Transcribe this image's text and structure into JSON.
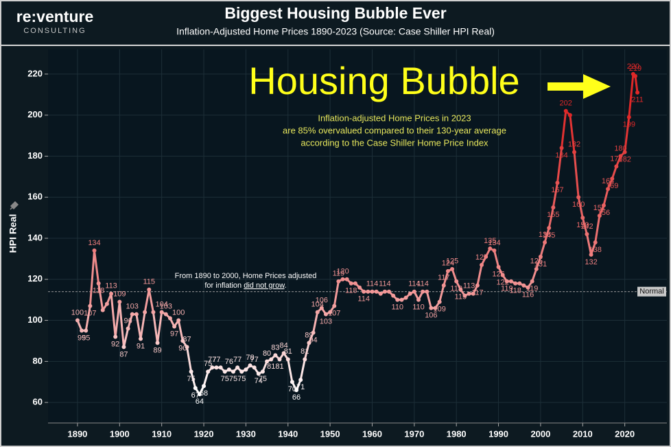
{
  "brand": {
    "name": "re:venture",
    "tagline": "CONSULTING"
  },
  "chart_data": {
    "type": "line",
    "title": "Biggest Housing Bubble Ever",
    "subtitle": "Inflation-Adjusted Home Prices 1890-2023 (Source: Case Shiller HPI Real)",
    "y_label": "HPI Real",
    "annotation": "Housing Bubble",
    "note": [
      "Inflation-adjusted Home Prices in 2023",
      "are 85% overvalued compared to their 130-year average",
      "according to the Case Shiller Home Price Index"
    ],
    "history_note": {
      "line1": "From 1890 to 2000, Home Prices adjusted",
      "line2_start": "for inflation",
      "line2_emphasis": "did not grow",
      "line2_end": "."
    },
    "reference_line": {
      "value": 114,
      "label": "Normal"
    },
    "x": [
      1890,
      1891,
      1892,
      1893,
      1894,
      1895,
      1896,
      1897,
      1898,
      1899,
      1900,
      1901,
      1902,
      1903,
      1904,
      1905,
      1906,
      1907,
      1908,
      1909,
      1910,
      1911,
      1912,
      1913,
      1914,
      1915,
      1916,
      1917,
      1918,
      1919,
      1920,
      1921,
      1922,
      1923,
      1924,
      1925,
      1926,
      1927,
      1928,
      1929,
      1930,
      1931,
      1932,
      1933,
      1934,
      1935,
      1936,
      1937,
      1938,
      1939,
      1940,
      1941,
      1942,
      1943,
      1944,
      1945,
      1946,
      1947,
      1948,
      1949,
      1950,
      1951,
      1952,
      1953,
      1954,
      1955,
      1956,
      1957,
      1958,
      1959,
      1960,
      1961,
      1962,
      1963,
      1964,
      1965,
      1966,
      1967,
      1968,
      1969,
      1970,
      1971,
      1972,
      1973,
      1974,
      1975,
      1976,
      1977,
      1978,
      1979,
      1980,
      1981,
      1982,
      1983,
      1984,
      1985,
      1986,
      1987,
      1988,
      1989,
      1990,
      1991,
      1992,
      1993,
      1994,
      1995,
      1996,
      1997,
      1998,
      1999,
      2000,
      2001,
      2002,
      2003,
      2004,
      2005,
      2006,
      2007,
      2008,
      2009,
      2010,
      2011,
      2012,
      2013,
      2014,
      2015,
      2016,
      2017,
      2018,
      2019,
      2020,
      2021,
      2022,
      2022.5,
      2023
    ],
    "values": [
      100,
      95,
      95,
      107,
      134,
      118,
      105,
      108,
      113,
      92,
      109,
      87,
      96,
      103,
      103,
      91,
      104,
      115,
      104,
      89,
      104,
      103,
      101,
      97,
      100,
      90,
      87,
      75,
      67,
      64,
      68,
      75,
      77,
      77,
      77,
      75,
      76,
      75,
      77,
      75,
      76,
      78,
      77,
      74,
      75,
      80,
      81,
      83,
      81,
      84,
      81,
      70,
      66,
      71,
      81,
      89,
      94,
      104,
      106,
      103,
      104,
      107,
      119,
      120,
      120,
      118,
      118,
      116,
      114,
      114,
      114,
      114,
      113,
      114,
      114,
      112,
      110,
      110,
      111,
      113,
      114,
      110,
      114,
      114,
      106,
      106,
      109,
      117,
      124,
      125,
      119,
      115,
      112,
      113,
      113,
      117,
      127,
      131,
      135,
      134,
      126,
      122,
      119,
      119,
      118,
      118,
      117,
      116,
      119,
      125,
      131,
      138,
      145,
      155,
      167,
      184,
      202,
      200,
      182,
      160,
      150,
      142,
      132,
      138,
      151,
      156,
      164,
      169,
      175,
      180,
      182,
      199,
      220,
      219,
      211
    ],
    "value_labels": [
      "100",
      "95",
      "95",
      "107",
      "134",
      "118",
      null,
      null,
      "113",
      "92",
      "109",
      "87",
      "96",
      "103",
      null,
      "91",
      null,
      "115",
      null,
      "89",
      "104",
      "103",
      null,
      "97",
      "100",
      "90",
      "87",
      "75",
      "67",
      "64",
      "68",
      "75",
      "77",
      "77",
      null,
      "75",
      "76",
      "75",
      "77",
      "75",
      null,
      "78",
      "77",
      "74",
      "75",
      "80",
      "81",
      "83",
      "81",
      "84",
      "81",
      "70",
      "66",
      "71",
      "81",
      "89",
      "94",
      "104",
      "106",
      "103",
      null,
      "107",
      "119",
      "120",
      null,
      "118",
      null,
      null,
      "114",
      null,
      "114",
      null,
      null,
      "114",
      null,
      null,
      "110",
      null,
      null,
      null,
      "114",
      "110",
      "114",
      null,
      "106",
      null,
      "109",
      "117",
      "124",
      "125",
      "119",
      "115",
      null,
      "113",
      null,
      "117",
      "127",
      null,
      "135",
      "134",
      "126",
      "122",
      "119",
      null,
      "118",
      null,
      null,
      "116",
      "119",
      "125",
      "131",
      "138",
      "145",
      "155",
      "167",
      "184",
      "202",
      null,
      "182",
      "160",
      "150",
      "142",
      "132",
      "138",
      "151",
      "156",
      "164",
      "169",
      "175",
      "180",
      "182",
      "199",
      "220",
      "219",
      "211"
    ],
    "color_stops": [
      [
        65,
        "#ffffff"
      ],
      [
        105,
        "#f3a3a3"
      ],
      [
        200,
        "#e02828"
      ]
    ],
    "xlim": [
      1883,
      2030
    ],
    "ylim": [
      50,
      232
    ],
    "xticks": [
      1890,
      1900,
      1910,
      1920,
      1930,
      1940,
      1950,
      1960,
      1970,
      1980,
      1990,
      2000,
      2010,
      2020
    ],
    "yticks": [
      60,
      80,
      100,
      120,
      140,
      160,
      180,
      200,
      220
    ],
    "grid": true
  }
}
